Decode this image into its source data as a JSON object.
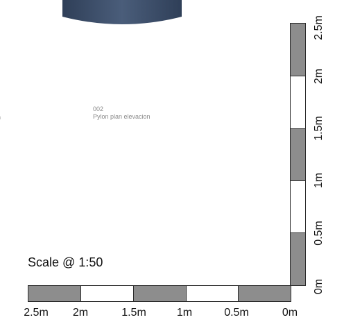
{
  "drawing": {
    "number": "002",
    "title": "Pylon plan elevacion",
    "edge_text": "n",
    "pylon_color": "#3c4f6b"
  },
  "scale": {
    "label": "Scale @ 1:50",
    "fill_colors": {
      "grey": "#8d8d8d",
      "white": "#ffffff"
    },
    "horizontal_ticks": [
      "2.5m",
      "2m",
      "1.5m",
      "1m",
      "0.5m",
      "0m"
    ],
    "vertical_ticks": [
      "2.5m",
      "2m",
      "1.5m",
      "1m",
      "0.5m",
      "0m"
    ]
  }
}
